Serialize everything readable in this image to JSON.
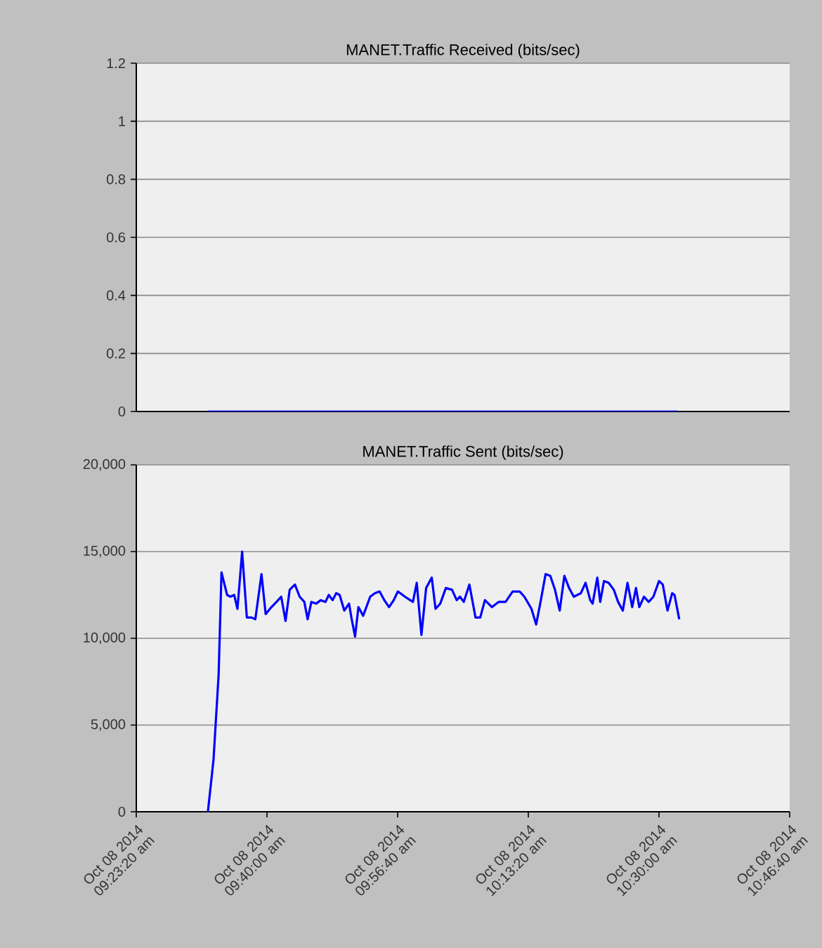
{
  "chart_data": [
    {
      "type": "line",
      "title": "MANET.Traffic Received (bits/sec)",
      "xlim": [
        "2014-10-08T09:23:20",
        "2014-10-08T10:46:40"
      ],
      "ylim": [
        0,
        1.2
      ],
      "yticks": [
        0,
        0.2,
        0.4,
        0.6,
        0.8,
        1,
        1.2
      ],
      "grid": "y",
      "tick_labels": "y",
      "series": [
        {
          "color": "#0000ff",
          "x": [
            "2014-10-08T09:32:28",
            "2014-10-08T10:32:20"
          ],
          "values": [
            0,
            0
          ]
        }
      ]
    },
    {
      "type": "line",
      "title": "MANET.Traffic Sent (bits/sec)",
      "xlim": [
        "2014-10-08T09:23:20",
        "2014-10-08T10:46:40"
      ],
      "ylim": [
        0,
        20000
      ],
      "xticks": [
        {
          "value": "2014-10-08T09:23:20",
          "label": "Oct 08 2014 09:23:20 am"
        },
        {
          "value": "2014-10-08T09:40:00",
          "label": "Oct 08 2014 09:40:00 am"
        },
        {
          "value": "2014-10-08T09:56:40",
          "label": "Oct 08 2014 09:56:40 am"
        },
        {
          "value": "2014-10-08T10:13:20",
          "label": "Oct 08 2014 10:13:20 am"
        },
        {
          "value": "2014-10-08T10:30:00",
          "label": "Oct 08 2014 10:30:00 am"
        },
        {
          "value": "2014-10-08T10:46:40",
          "label": "Oct 08 2014 10:46:40 am"
        }
      ],
      "yticks": [
        {
          "value": 0,
          "label": "0"
        },
        {
          "value": 5000,
          "label": "5,000"
        },
        {
          "value": 10000,
          "label": "10,000"
        },
        {
          "value": 15000,
          "label": "15,000"
        },
        {
          "value": 20000,
          "label": "20,000"
        }
      ],
      "grid": "y",
      "series": [
        {
          "color": "#0000ff",
          "x": [
            "2014-10-08T09:32:28",
            "2014-10-08T09:33:11",
            "2014-10-08T09:33:50",
            "2014-10-08T09:34:12",
            "2014-10-08T09:34:55",
            "2014-10-08T09:35:20",
            "2014-10-08T09:35:49",
            "2014-10-08T09:36:14",
            "2014-10-08T09:36:50",
            "2014-10-08T09:37:26",
            "2014-10-08T09:38:02",
            "2014-10-08T09:38:31",
            "2014-10-08T09:39:18",
            "2014-10-08T09:39:50",
            "2014-10-08T09:40:34",
            "2014-10-08T09:41:13",
            "2014-10-08T09:41:49",
            "2014-10-08T09:42:22",
            "2014-10-08T09:42:54",
            "2014-10-08T09:43:34",
            "2014-10-08T09:44:10",
            "2014-10-08T09:44:46",
            "2014-10-08T09:45:11",
            "2014-10-08T09:45:40",
            "2014-10-08T09:46:16",
            "2014-10-08T09:46:52",
            "2014-10-08T09:47:28",
            "2014-10-08T09:47:53",
            "2014-10-08T09:48:22",
            "2014-10-08T09:48:50",
            "2014-10-08T09:49:16",
            "2014-10-08T09:49:52",
            "2014-10-08T09:50:28",
            "2014-10-08T09:50:46",
            "2014-10-08T09:51:14",
            "2014-10-08T09:51:40",
            "2014-10-08T09:52:16",
            "2014-10-08T09:53:10",
            "2014-10-08T09:53:46",
            "2014-10-08T09:54:22",
            "2014-10-08T09:54:58",
            "2014-10-08T09:55:34",
            "2014-10-08T09:56:10",
            "2014-10-08T09:56:42",
            "2014-10-08T09:57:36",
            "2014-10-08T09:58:16",
            "2014-10-08T09:58:37",
            "2014-10-08T09:59:06",
            "2014-10-08T09:59:42",
            "2014-10-08T10:00:18",
            "2014-10-08T10:01:01",
            "2014-10-08T10:01:30",
            "2014-10-08T10:02:06",
            "2014-10-08T10:02:49",
            "2014-10-08T10:03:36",
            "2014-10-08T10:04:12",
            "2014-10-08T10:04:37",
            "2014-10-08T10:05:06",
            "2014-10-08T10:05:49",
            "2014-10-08T10:06:36",
            "2014-10-08T10:07:12",
            "2014-10-08T10:07:48",
            "2014-10-08T10:08:42",
            "2014-10-08T10:09:32",
            "2014-10-08T10:10:26",
            "2014-10-08T10:11:20",
            "2014-10-08T10:12:14",
            "2014-10-08T10:12:50",
            "2014-10-08T10:13:44",
            "2014-10-08T10:14:20",
            "2014-10-08T10:14:56",
            "2014-10-08T10:15:32",
            "2014-10-08T10:16:08",
            "2014-10-08T10:16:44",
            "2014-10-08T10:17:20",
            "2014-10-08T10:17:56",
            "2014-10-08T10:18:32",
            "2014-10-08T10:19:08",
            "2014-10-08T10:20:02",
            "2014-10-08T10:20:38",
            "2014-10-08T10:21:14",
            "2014-10-08T10:21:32",
            "2014-10-08T10:22:08",
            "2014-10-08T10:22:30",
            "2014-10-08T10:22:59",
            "2014-10-08T10:23:35",
            "2014-10-08T10:24:14",
            "2014-10-08T10:24:47",
            "2014-10-08T10:25:23",
            "2014-10-08T10:25:59",
            "2014-10-08T10:26:35",
            "2014-10-08T10:27:04",
            "2014-10-08T10:27:29",
            "2014-10-08T10:28:05",
            "2014-10-08T10:28:41",
            "2014-10-08T10:29:17",
            "2014-10-08T10:30:00",
            "2014-10-08T10:30:29",
            "2014-10-08T10:31:05",
            "2014-10-08T10:31:41",
            "2014-10-08T10:31:59",
            "2014-10-08T10:32:35"
          ],
          "values": [
            0,
            3000,
            7900,
            13800,
            12500,
            12400,
            12500,
            11700,
            15000,
            11200,
            11200,
            11100,
            13700,
            11400,
            11800,
            12100,
            12400,
            11000,
            12800,
            13100,
            12400,
            12100,
            11100,
            12100,
            12000,
            12200,
            12100,
            12500,
            12200,
            12600,
            12500,
            11600,
            12000,
            11200,
            10100,
            11800,
            11300,
            12400,
            12600,
            12700,
            12200,
            11800,
            12200,
            12700,
            12400,
            12200,
            12100,
            13200,
            10200,
            12900,
            13500,
            11700,
            12000,
            12900,
            12800,
            12200,
            12400,
            12100,
            13100,
            11200,
            11200,
            12200,
            11800,
            12100,
            12100,
            12700,
            12700,
            12400,
            11700,
            10800,
            12200,
            13700,
            13600,
            12800,
            11600,
            13600,
            12900,
            12400,
            12600,
            13200,
            12200,
            12000,
            13500,
            12100,
            13300,
            13200,
            12800,
            12100,
            11600,
            13200,
            11800,
            12900,
            11800,
            12400,
            12100,
            12400,
            13300,
            13100,
            11600,
            12600,
            12500,
            11100
          ]
        }
      ]
    }
  ]
}
